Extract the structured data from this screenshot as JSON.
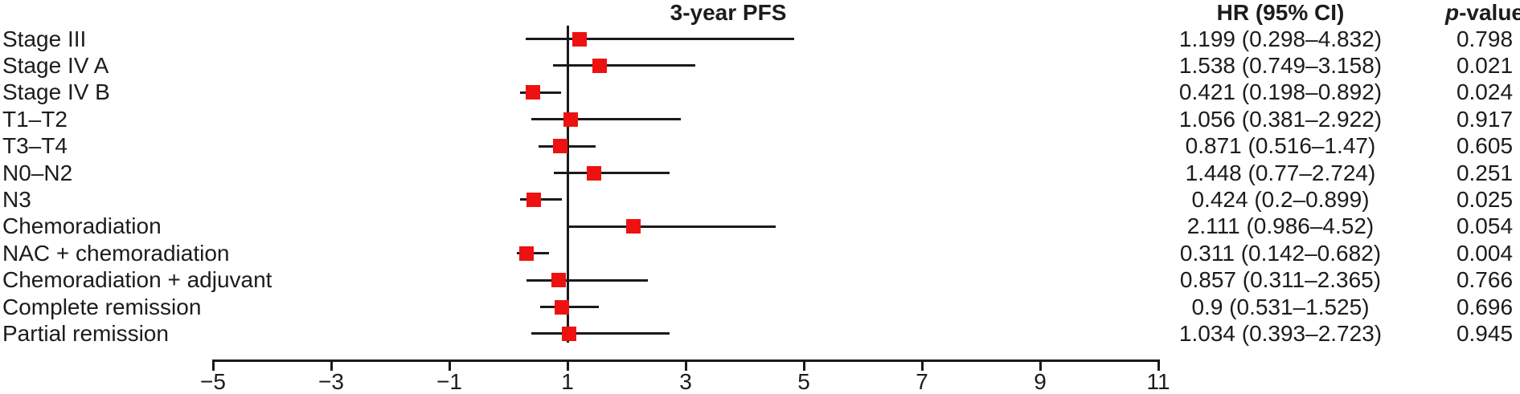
{
  "header": {
    "title": "3-year PFS",
    "hr_column": "HR (95% CI)",
    "p_column_italic": "p",
    "p_column_rest": "-value"
  },
  "style": {
    "marker_color": "#ee1111",
    "line_color": "#1a1a1a",
    "text_color": "#1c1c1c",
    "background": "#ffffff"
  },
  "chart_data": {
    "type": "scatter",
    "variant": "forest-plot",
    "title": "3-year PFS",
    "xlabel": "",
    "ylabel": "",
    "grid": false,
    "legend": null,
    "x_axis": {
      "min": -5,
      "max": 11,
      "ticks": [
        -5,
        -3,
        -1,
        1,
        3,
        5,
        7,
        9,
        11
      ],
      "tick_labels": [
        "−5",
        "−3",
        "−1",
        "1",
        "3",
        "5",
        "7",
        "9",
        "11"
      ],
      "reference_line": 1
    },
    "rows": [
      {
        "label": "Stage III",
        "hr": 1.199,
        "ci_low": 0.298,
        "ci_high": 4.832,
        "hr_ci_text": "1.199 (0.298–4.832)",
        "p_value": "0.798"
      },
      {
        "label": "Stage IV A",
        "hr": 1.538,
        "ci_low": 0.749,
        "ci_high": 3.158,
        "hr_ci_text": "1.538 (0.749–3.158)",
        "p_value": "0.021"
      },
      {
        "label": "Stage IV B",
        "hr": 0.421,
        "ci_low": 0.198,
        "ci_high": 0.892,
        "hr_ci_text": "0.421 (0.198–0.892)",
        "p_value": "0.024"
      },
      {
        "label": "T1–T2",
        "hr": 1.056,
        "ci_low": 0.381,
        "ci_high": 2.922,
        "hr_ci_text": "1.056 (0.381–2.922)",
        "p_value": "0.917"
      },
      {
        "label": "T3–T4",
        "hr": 0.871,
        "ci_low": 0.516,
        "ci_high": 1.47,
        "hr_ci_text": "0.871 (0.516–1.47)",
        "p_value": "0.605"
      },
      {
        "label": "N0–N2",
        "hr": 1.448,
        "ci_low": 0.77,
        "ci_high": 2.724,
        "hr_ci_text": "1.448 (0.77–2.724)",
        "p_value": "0.251"
      },
      {
        "label": "N3",
        "hr": 0.424,
        "ci_low": 0.2,
        "ci_high": 0.899,
        "hr_ci_text": "0.424 (0.2–0.899)",
        "p_value": "0.025"
      },
      {
        "label": "Chemoradiation",
        "hr": 2.111,
        "ci_low": 0.986,
        "ci_high": 4.52,
        "hr_ci_text": "2.111 (0.986–4.52)",
        "p_value": "0.054"
      },
      {
        "label": "NAC + chemoradiation",
        "hr": 0.311,
        "ci_low": 0.142,
        "ci_high": 0.682,
        "hr_ci_text": "0.311 (0.142–0.682)",
        "p_value": "0.004"
      },
      {
        "label": "Chemoradiation + adjuvant",
        "hr": 0.857,
        "ci_low": 0.311,
        "ci_high": 2.365,
        "hr_ci_text": "0.857 (0.311–2.365)",
        "p_value": "0.766"
      },
      {
        "label": "Complete remission",
        "hr": 0.9,
        "ci_low": 0.531,
        "ci_high": 1.525,
        "hr_ci_text": "0.9 (0.531–1.525)",
        "p_value": "0.696"
      },
      {
        "label": "Partial remission",
        "hr": 1.034,
        "ci_low": 0.393,
        "ci_high": 2.723,
        "hr_ci_text": "1.034 (0.393–2.723)",
        "p_value": "0.945"
      }
    ]
  }
}
